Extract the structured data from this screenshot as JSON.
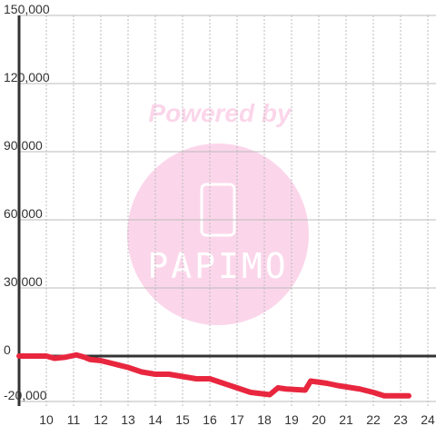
{
  "chart_data": {
    "type": "line",
    "watermark": [
      "Powered by",
      "PAPIMO"
    ],
    "xlim": [
      9,
      24.3
    ],
    "xticks": [
      10,
      11,
      12,
      13,
      14,
      15,
      16,
      17,
      18,
      19,
      20,
      21,
      22,
      23,
      24
    ],
    "ylim": [
      -22000,
      150000
    ],
    "yticks": [
      {
        "value": -20000,
        "label": "-20,000"
      },
      0,
      {
        "value": 30000,
        "label": "30,000"
      },
      {
        "value": 60000,
        "label": "60,000"
      },
      {
        "value": 90000,
        "label": "90,000"
      },
      {
        "value": 120000,
        "label": "120,000"
      },
      {
        "value": 150000,
        "label": "150,000"
      }
    ],
    "grid": true,
    "series": [
      {
        "color": "#e8273f",
        "x": [
          9,
          10,
          10.3,
          10.7,
          11.1,
          11.4,
          11.6,
          12,
          12.5,
          13,
          13.5,
          14,
          14.5,
          15,
          15.5,
          16,
          16.5,
          17,
          17.5,
          18.2,
          18.5,
          18.8,
          19.5,
          19.7,
          20.3,
          20.7,
          21.5,
          22,
          22.4,
          23.3
        ],
        "values": [
          0,
          0,
          -1000,
          -500,
          500,
          -500,
          -1500,
          -2000,
          -3500,
          -5000,
          -7000,
          -8000,
          -8000,
          -9000,
          -10000,
          -10000,
          -12000,
          -14000,
          -16000,
          -17000,
          -14000,
          -14500,
          -15000,
          -11000,
          -12000,
          -13000,
          -14500,
          -16000,
          -17500,
          -17500
        ]
      }
    ]
  }
}
